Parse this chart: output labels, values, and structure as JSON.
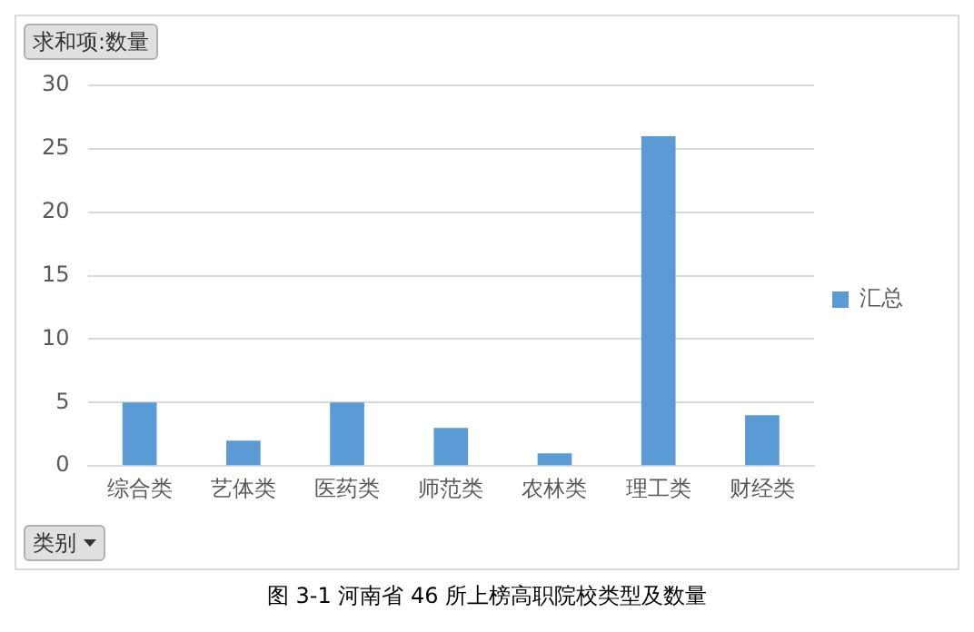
{
  "chart_data": {
    "type": "bar",
    "ylabel": "求和项:数量",
    "xlabel": "类别",
    "categories": [
      "综合类",
      "艺体类",
      "医药类",
      "师范类",
      "农林类",
      "理工类",
      "财经类"
    ],
    "series": [
      {
        "name": "汇总",
        "color": "#5b9bd5",
        "values": [
          5,
          2,
          5,
          3,
          1,
          26,
          4
        ]
      }
    ],
    "ylim": [
      0,
      30
    ],
    "yticks": [
      0,
      5,
      10,
      15,
      20,
      25,
      30
    ],
    "grid": "y",
    "legend": "right",
    "annotations": [
      "图 3-1 河南省 46 所上榜高职院校类型及数量"
    ]
  }
}
